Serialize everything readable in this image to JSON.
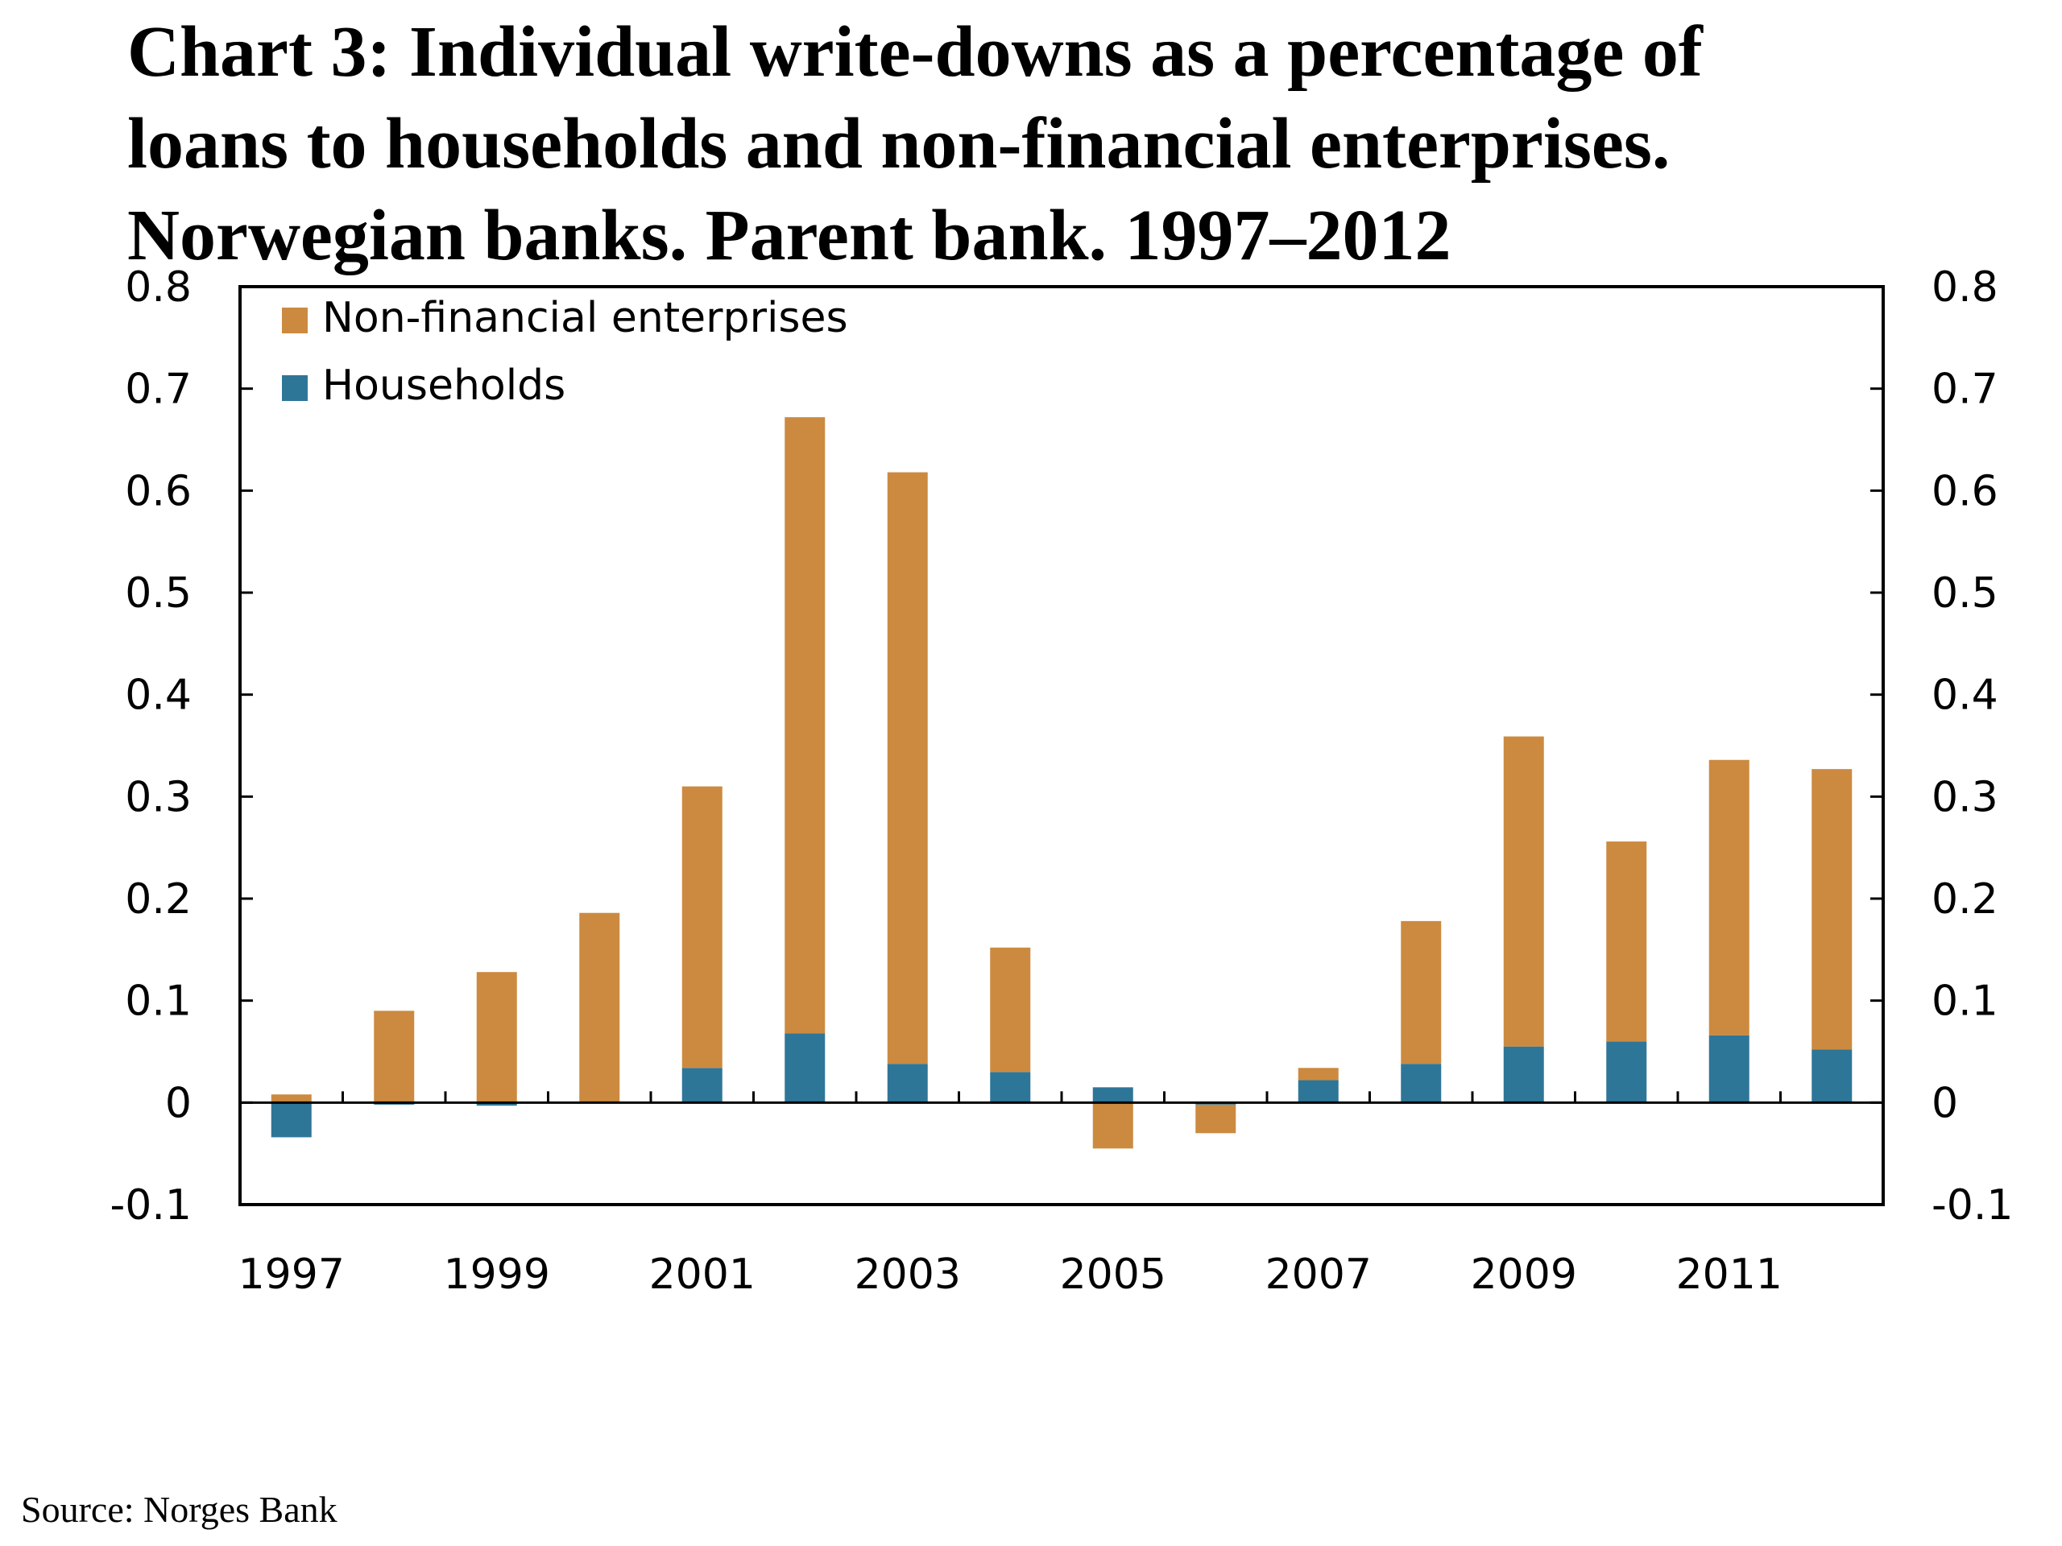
{
  "title_lines": [
    "Chart 3: Individual write-downs as a percentage of",
    "loans to households and non-financial enterprises.",
    "Norwegian banks. Parent bank. 1997–2012"
  ],
  "source": "Source: Norges Bank",
  "colors": {
    "non_financial": "#CC8A40",
    "households": "#2E7698",
    "axis": "#000000"
  },
  "chart_data": {
    "type": "bar",
    "stacked": true,
    "title": "Chart 3: Individual write-downs as a percentage of loans to households and non-financial enterprises. Norwegian banks. Parent bank. 1997–2012",
    "xlabel": "",
    "ylabel": "",
    "ylim": [
      -0.1,
      0.8
    ],
    "yticks": [
      -0.1,
      0,
      0.1,
      0.2,
      0.3,
      0.4,
      0.5,
      0.6,
      0.7,
      0.8
    ],
    "ytick_labels": [
      "-0.1",
      "0",
      "0.1",
      "0.2",
      "0.3",
      "0.4",
      "0.5",
      "0.6",
      "0.7",
      "0.8"
    ],
    "secondary_y_axis": true,
    "grid": false,
    "legend_position": "top-left",
    "categories": [
      "1997",
      "1998",
      "1999",
      "2000",
      "2001",
      "2002",
      "2003",
      "2004",
      "2005",
      "2006",
      "2007",
      "2008",
      "2009",
      "2010",
      "2011",
      "2012"
    ],
    "x_tick_labels_shown": [
      "1997",
      "1999",
      "2001",
      "2003",
      "2005",
      "2007",
      "2009",
      "2011"
    ],
    "series": [
      {
        "name": "Households",
        "color_key": "households",
        "values": [
          -0.034,
          -0.002,
          -0.003,
          0.0,
          0.034,
          0.068,
          0.038,
          0.03,
          0.015,
          -0.002,
          0.022,
          0.038,
          0.055,
          0.06,
          0.066,
          0.052
        ]
      },
      {
        "name": "Non-financial enterprises",
        "color_key": "non_financial",
        "values": [
          0.008,
          0.09,
          0.128,
          0.186,
          0.276,
          0.604,
          0.58,
          0.122,
          -0.045,
          -0.028,
          0.012,
          0.14,
          0.304,
          0.196,
          0.27,
          0.275
        ]
      }
    ],
    "legend_order": [
      "Non-financial enterprises",
      "Households"
    ]
  }
}
